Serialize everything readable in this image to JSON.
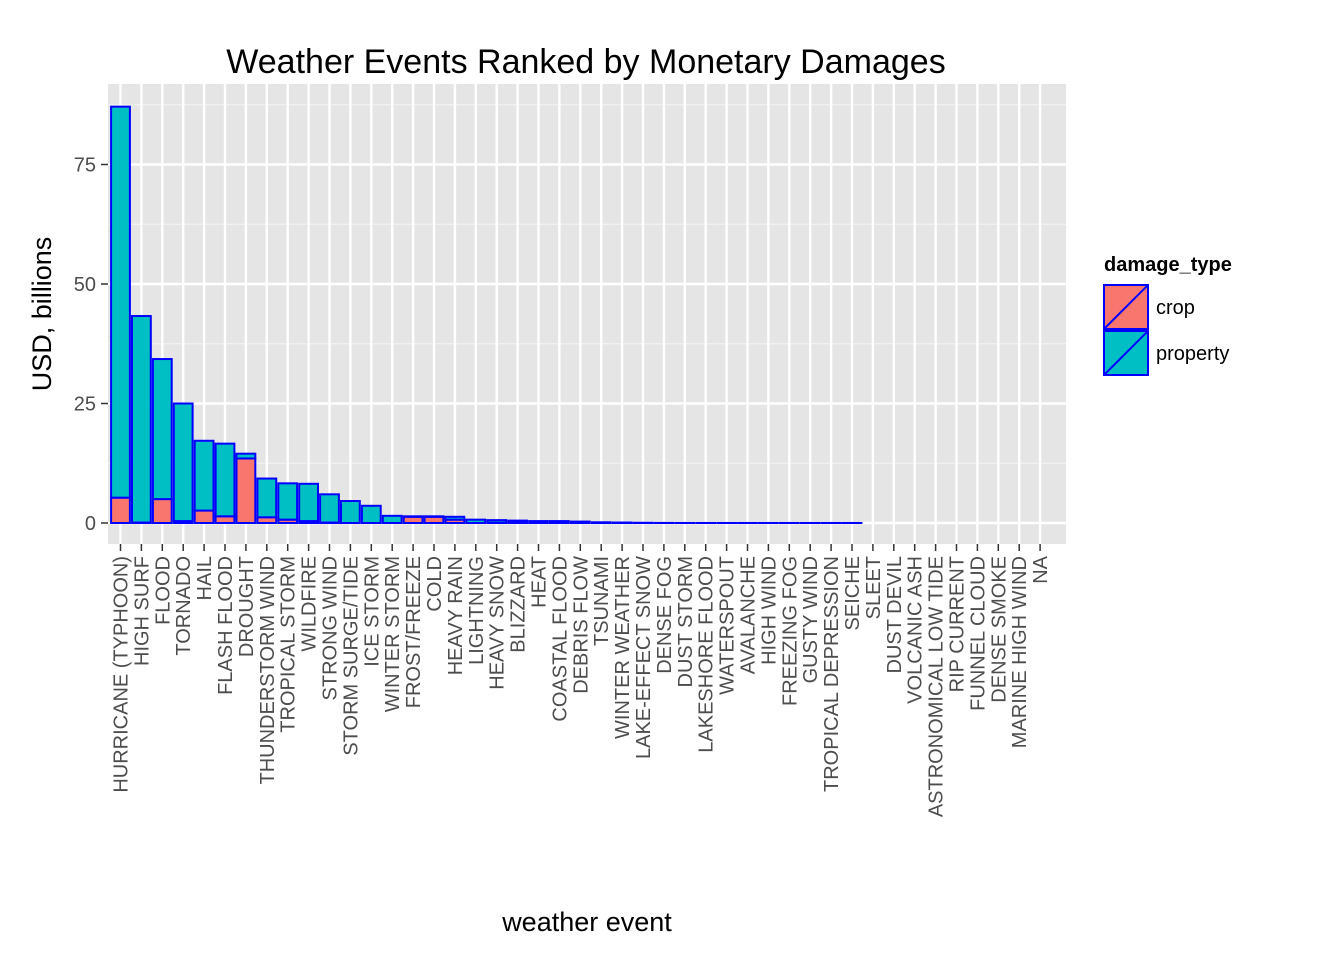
{
  "chart_data": {
    "type": "bar",
    "stacked": true,
    "title": "Weather Events Ranked by Monetary Damages",
    "xlabel": "weather event",
    "ylabel": "USD, billions",
    "ylim": [
      -3.5,
      90
    ],
    "yticks": [
      0,
      25,
      50,
      75
    ],
    "grid": true,
    "legend": {
      "title": "damage_type",
      "position": "right"
    },
    "bar_outline_color": "#0000ff",
    "panel_background": "#e5e5e5",
    "categories": [
      "HURRICANE (TYPHOON)",
      "HIGH SURF",
      "FLOOD",
      "TORNADO",
      "HAIL",
      "FLASH FLOOD",
      "DROUGHT",
      "THUNDERSTORM WIND",
      "TROPICAL STORM",
      "WILDFIRE",
      "STRONG WIND",
      "STORM SURGE/TIDE",
      "ICE STORM",
      "WINTER STORM",
      "FROST/FREEZE",
      "COLD",
      "HEAVY RAIN",
      "LIGHTNING",
      "HEAVY SNOW",
      "BLIZZARD",
      "HEAT",
      "COASTAL FLOOD",
      "DEBRIS FLOW",
      "TSUNAMI",
      "WINTER WEATHER",
      "LAKE-EFFECT SNOW",
      "DENSE FOG",
      "DUST STORM",
      "LAKESHORE FLOOD",
      "WATERSPOUT",
      "AVALANCHE",
      "HIGH WIND",
      "FREEZING FOG",
      "GUSTY WIND",
      "TROPICAL DEPRESSION",
      "SEICHE",
      "SLEET",
      "DUST DEVIL",
      "VOLCANIC ASH",
      "ASTRONOMICAL LOW TIDE",
      "RIP CURRENT",
      "FUNNEL CLOUD",
      "DENSE SMOKE",
      "MARINE HIGH WIND",
      "NA"
    ],
    "series": [
      {
        "name": "crop",
        "color": "#f8766d",
        "values": [
          5.3,
          0.1,
          5.0,
          0.4,
          2.6,
          1.4,
          13.5,
          1.2,
          0.7,
          0.4,
          0.1,
          0.0,
          0.0,
          0.0,
          1.3,
          1.3,
          0.7,
          0.0,
          0.1,
          0.1,
          0.4,
          0.0,
          0.0,
          0.0,
          0.0,
          0.0,
          0.0,
          0.0,
          0.0,
          0.0,
          0.0,
          0.0,
          0.0,
          0.0,
          0.0,
          0.0,
          0.0,
          0.0,
          0.0,
          0.0,
          0.0,
          0.0,
          0.0,
          0.0,
          0.0
        ]
      },
      {
        "name": "property",
        "color": "#00bfc4",
        "values": [
          81.8,
          43.2,
          29.3,
          24.6,
          14.6,
          15.2,
          1.0,
          8.1,
          7.6,
          7.8,
          5.9,
          4.6,
          3.6,
          1.5,
          0.1,
          0.1,
          0.6,
          0.7,
          0.5,
          0.4,
          0.0,
          0.4,
          0.3,
          0.15,
          0.1,
          0.05,
          0.02,
          0.01,
          0.01,
          0.01,
          0.01,
          0.01,
          0.01,
          0.01,
          0.01,
          0.01,
          0.0,
          0.0,
          0.0,
          0.0,
          0.0,
          0.0,
          0.0,
          0.0,
          0.0
        ]
      }
    ]
  }
}
